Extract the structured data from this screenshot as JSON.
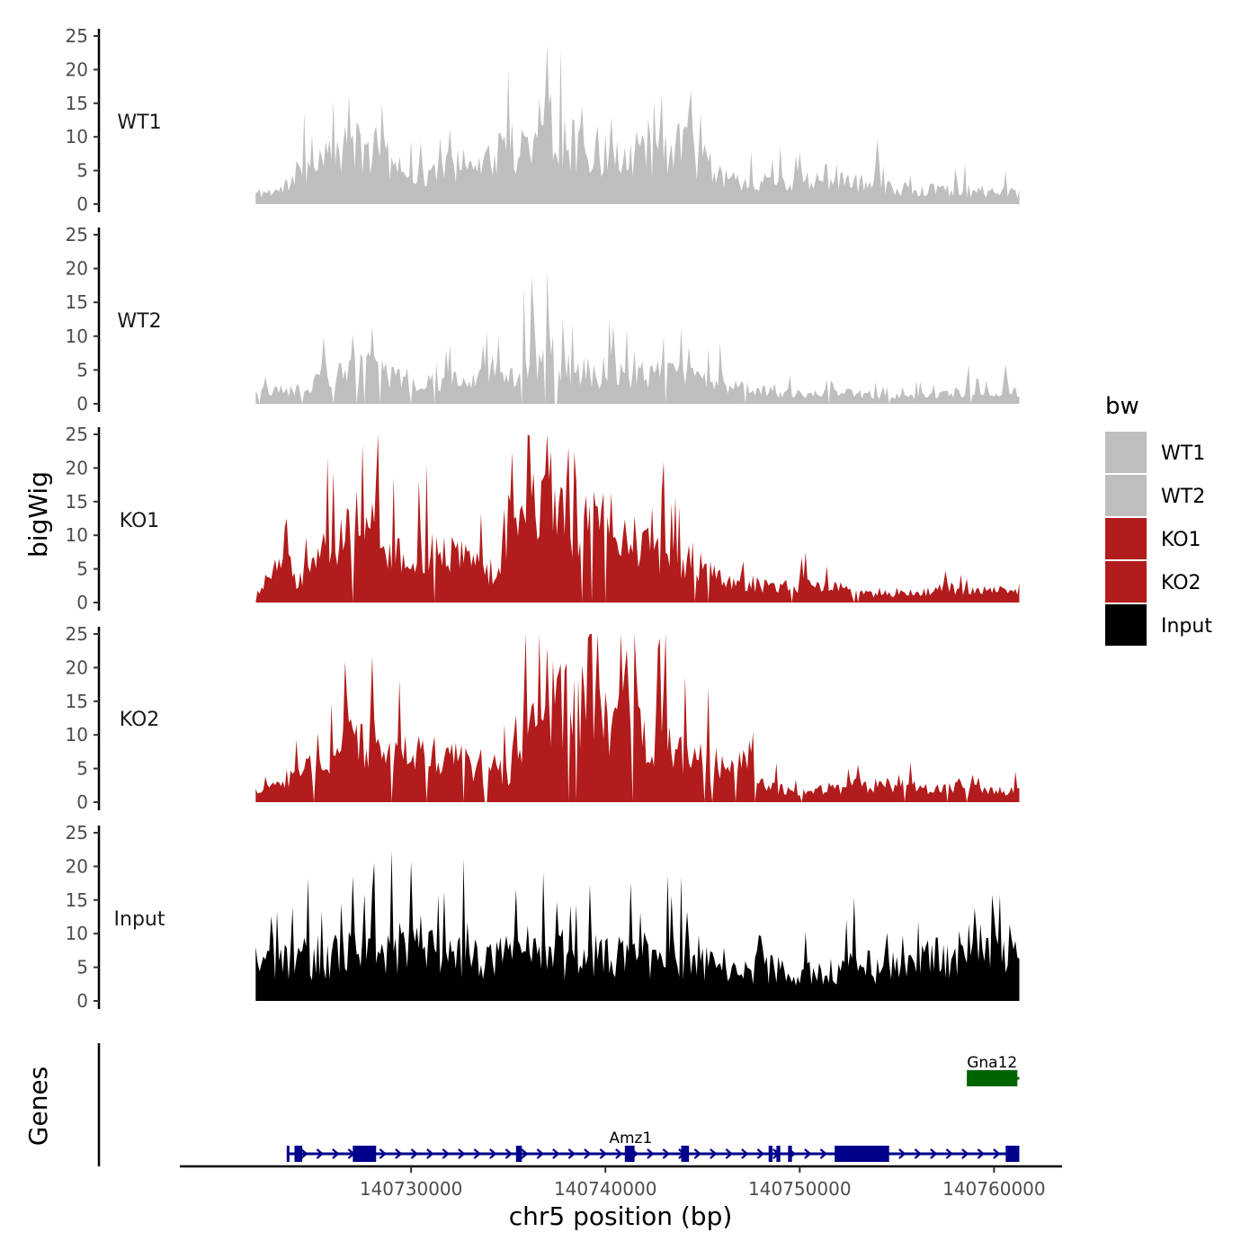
{
  "chart_data": {
    "type": "area",
    "title": "",
    "ylabel": "bigWig",
    "xlabel": "chr5 position (bp)",
    "ylim": [
      0,
      25
    ],
    "yticks": [
      0,
      5,
      10,
      15,
      20,
      25
    ],
    "x_range": [
      140722000,
      140761300
    ],
    "xlim": [
      140718100,
      140763500
    ],
    "xticks": [
      140730000,
      140740000,
      140750000,
      140760000
    ],
    "xtick_labels": [
      "140730000",
      "140740000",
      "140750000",
      "140760000"
    ],
    "bin_size_bp": 100,
    "tracks": [
      {
        "name": "WT1",
        "color": "#bebebe",
        "seed": 11,
        "noise": 0.85,
        "gap_prob": 0.0,
        "profile": [
          [
            140722000,
            1.5
          ],
          [
            140723500,
            2
          ],
          [
            140724200,
            5
          ],
          [
            140725500,
            6
          ],
          [
            140727000,
            8
          ],
          [
            140729000,
            6
          ],
          [
            140730500,
            4
          ],
          [
            140732000,
            5
          ],
          [
            140734500,
            7
          ],
          [
            140736000,
            9
          ],
          [
            140737000,
            11
          ],
          [
            140738500,
            8
          ],
          [
            140740500,
            7
          ],
          [
            140742000,
            7
          ],
          [
            140744000,
            8
          ],
          [
            140745500,
            5
          ],
          [
            140747000,
            3
          ],
          [
            140749000,
            3
          ],
          [
            140751000,
            3
          ],
          [
            140753000,
            3
          ],
          [
            140755000,
            2
          ],
          [
            140758000,
            2
          ],
          [
            140761300,
            1.5
          ]
        ],
        "peaks": [
          [
            140737000,
            18
          ],
          [
            140736600,
            17
          ],
          [
            140740300,
            14
          ],
          [
            140738800,
            15
          ],
          [
            140744300,
            15
          ],
          [
            140728200,
            12
          ],
          [
            140732000,
            12
          ],
          [
            140735000,
            13
          ],
          [
            140750000,
            8
          ],
          [
            140754000,
            10
          ],
          [
            140731500,
            10
          ]
        ]
      },
      {
        "name": "WT2",
        "color": "#bebebe",
        "seed": 23,
        "noise": 0.85,
        "gap_prob": 0.04,
        "profile": [
          [
            140722000,
            1.5
          ],
          [
            140724000,
            2
          ],
          [
            140725000,
            3
          ],
          [
            140727000,
            5
          ],
          [
            140729000,
            4
          ],
          [
            140731000,
            3
          ],
          [
            140733000,
            3
          ],
          [
            140735000,
            4
          ],
          [
            140736500,
            6
          ],
          [
            140738000,
            5
          ],
          [
            140740000,
            4
          ],
          [
            140742000,
            4
          ],
          [
            140744000,
            4
          ],
          [
            140746000,
            3
          ],
          [
            140748000,
            1.5
          ],
          [
            140750000,
            1.5
          ],
          [
            140752000,
            1.5
          ],
          [
            140755000,
            1
          ],
          [
            140758000,
            1.5
          ],
          [
            140761300,
            1.5
          ]
        ],
        "peaks": [
          [
            140737000,
            20
          ],
          [
            140736300,
            15
          ],
          [
            140740400,
            12
          ],
          [
            140728000,
            12
          ],
          [
            140727000,
            11
          ],
          [
            140725500,
            10
          ],
          [
            140733700,
            9
          ],
          [
            140743000,
            10
          ],
          [
            140744300,
            9
          ],
          [
            140760600,
            6
          ],
          [
            140758700,
            6
          ],
          [
            140751500,
            6
          ]
        ]
      },
      {
        "name": "KO1",
        "color": "#b21c1c",
        "seed": 37,
        "noise": 0.8,
        "gap_prob": 0.03,
        "profile": [
          [
            140722000,
            1
          ],
          [
            140722800,
            4
          ],
          [
            140723800,
            5
          ],
          [
            140724200,
            2.5
          ],
          [
            140725000,
            7
          ],
          [
            140727000,
            11
          ],
          [
            140729000,
            8
          ],
          [
            140731000,
            7
          ],
          [
            140733000,
            6
          ],
          [
            140734300,
            4
          ],
          [
            140735000,
            11
          ],
          [
            140736500,
            13
          ],
          [
            140738000,
            12
          ],
          [
            140740000,
            11
          ],
          [
            140741500,
            7
          ],
          [
            140743000,
            7
          ],
          [
            140744000,
            6
          ],
          [
            140745500,
            4
          ],
          [
            140747000,
            3
          ],
          [
            140748500,
            2
          ],
          [
            140750000,
            2.5
          ],
          [
            140752000,
            2
          ],
          [
            140754000,
            1
          ],
          [
            140756000,
            1.5
          ],
          [
            140758000,
            2
          ],
          [
            140761300,
            1.5
          ]
        ],
        "peaks": [
          [
            140737100,
            19
          ],
          [
            140728200,
            19
          ],
          [
            140727200,
            17
          ],
          [
            140737700,
            18
          ],
          [
            140740300,
            17
          ],
          [
            140735700,
            15
          ],
          [
            140739500,
            15
          ],
          [
            140743000,
            11
          ],
          [
            140726000,
            13
          ],
          [
            140742200,
            12
          ],
          [
            140757500,
            5
          ],
          [
            140750300,
            6
          ]
        ]
      },
      {
        "name": "KO2",
        "color": "#b21c1c",
        "seed": 51,
        "noise": 0.8,
        "gap_prob": 0.04,
        "profile": [
          [
            140722000,
            1.5
          ],
          [
            140723000,
            2
          ],
          [
            140724000,
            4
          ],
          [
            140725500,
            5
          ],
          [
            140727000,
            9
          ],
          [
            140728500,
            8
          ],
          [
            140730000,
            7
          ],
          [
            140732000,
            6
          ],
          [
            140734000,
            5
          ],
          [
            140735000,
            4
          ],
          [
            140735800,
            10
          ],
          [
            140737000,
            14
          ],
          [
            140739000,
            13
          ],
          [
            140740000,
            12
          ],
          [
            140741500,
            11
          ],
          [
            140743000,
            8
          ],
          [
            140744500,
            6
          ],
          [
            140746000,
            5
          ],
          [
            140747500,
            6
          ],
          [
            140748400,
            2
          ],
          [
            140750000,
            1.5
          ],
          [
            140752000,
            2
          ],
          [
            140754000,
            2.5
          ],
          [
            140756000,
            2
          ],
          [
            140758000,
            2
          ],
          [
            140761300,
            1.5
          ]
        ],
        "peaks": [
          [
            140737000,
            25
          ],
          [
            140728000,
            22
          ],
          [
            140741000,
            21
          ],
          [
            140726700,
            17
          ],
          [
            140738400,
            17
          ],
          [
            140743000,
            17
          ],
          [
            140739700,
            17
          ],
          [
            140736300,
            15
          ],
          [
            140732700,
            12
          ],
          [
            140747500,
            8
          ],
          [
            140753000,
            6
          ]
        ]
      },
      {
        "name": "Input",
        "color": "#000000",
        "seed": 67,
        "noise": 0.9,
        "gap_prob": 0.0,
        "profile": [
          [
            140722000,
            5
          ],
          [
            140725000,
            6
          ],
          [
            140728000,
            7
          ],
          [
            140731000,
            7
          ],
          [
            140734000,
            6
          ],
          [
            140737000,
            6
          ],
          [
            140740000,
            6
          ],
          [
            140743000,
            6
          ],
          [
            140746000,
            5.5
          ],
          [
            140749000,
            4
          ],
          [
            140751000,
            4
          ],
          [
            140754000,
            5
          ],
          [
            140757000,
            6
          ],
          [
            140759000,
            8
          ],
          [
            140761300,
            6
          ]
        ],
        "peaks": [
          [
            140727000,
            16
          ],
          [
            140722800,
            13
          ],
          [
            140730500,
            13
          ],
          [
            140744200,
            14
          ],
          [
            140759000,
            15
          ],
          [
            140760000,
            13
          ],
          [
            140736000,
            12
          ],
          [
            140748000,
            10
          ],
          [
            140742000,
            11
          ]
        ]
      }
    ],
    "legend": {
      "title": "bw",
      "position": "right",
      "items": [
        {
          "label": "WT1",
          "color": "#bebebe"
        },
        {
          "label": "WT2",
          "color": "#bebebe"
        },
        {
          "label": "KO1",
          "color": "#b21c1c"
        },
        {
          "label": "KO2",
          "color": "#b21c1c"
        },
        {
          "label": "Input",
          "color": "#000000"
        }
      ]
    },
    "genes_track": {
      "label": "Genes",
      "genes": [
        {
          "name": "Amz1",
          "strand": "+",
          "color": "#00008b",
          "row": 2,
          "start": 140723600,
          "end": 140761300,
          "label_x": 140741300,
          "exons": [
            [
              140723600,
              140723700
            ],
            [
              140724000,
              140724400
            ],
            [
              140727000,
              140728200
            ],
            [
              140735400,
              140735700
            ],
            [
              140741000,
              140741500
            ],
            [
              140743900,
              140744300
            ],
            [
              140748400,
              140748600
            ],
            [
              140748800,
              140749000
            ],
            [
              140749400,
              140749600
            ],
            [
              140751800,
              140754600
            ],
            [
              140760600,
              140761300
            ]
          ]
        },
        {
          "name": "Gna12",
          "strand": "-",
          "color": "#006400",
          "row": 1,
          "start": 140758600,
          "end": 140761300,
          "label_x": 140759900,
          "exons": [
            [
              140758600,
              140761200
            ]
          ]
        }
      ]
    }
  }
}
